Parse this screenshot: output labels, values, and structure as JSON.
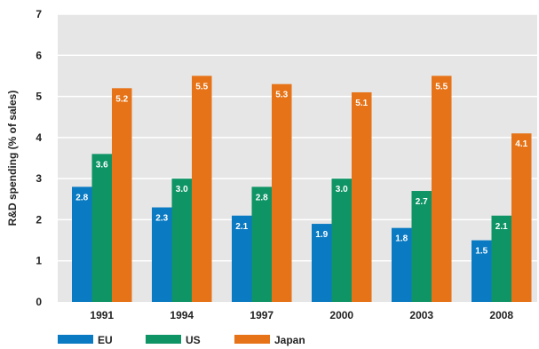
{
  "chart_data": {
    "type": "bar",
    "title": "",
    "xlabel": "",
    "ylabel": "R&D spending (% of sales)",
    "ylim": [
      0,
      7
    ],
    "yticks": [
      "0",
      "1",
      "2",
      "3",
      "4",
      "5",
      "6",
      "7"
    ],
    "grid": "horizontal",
    "legend_position": "bottom-left",
    "categories": [
      "1991",
      "1994",
      "1997",
      "2000",
      "2003",
      "2008"
    ],
    "series": [
      {
        "name": "EU",
        "color": "#0a7ac2",
        "values": [
          2.8,
          2.3,
          2.1,
          1.9,
          1.8,
          1.5
        ],
        "labels": [
          "2.8",
          "2.3",
          "2.1",
          "1.9",
          "1.8",
          "1.5"
        ]
      },
      {
        "name": "US",
        "color": "#0f9466",
        "values": [
          3.6,
          3.0,
          2.8,
          3.0,
          2.7,
          2.1
        ],
        "labels": [
          "3.6",
          "3.0",
          "2.8",
          "3.0",
          "2.7",
          "2.1"
        ]
      },
      {
        "name": "Japan",
        "color": "#e67317",
        "values": [
          5.2,
          5.5,
          5.3,
          5.1,
          5.5,
          4.1
        ],
        "labels": [
          "5.2",
          "5.5",
          "5.3",
          "5.1",
          "5.5",
          "4.1"
        ]
      }
    ],
    "colors": {
      "background": "#e6e6e6",
      "gridline": "#ffffff",
      "text": "#222222",
      "data_label": "#ffffff"
    }
  }
}
